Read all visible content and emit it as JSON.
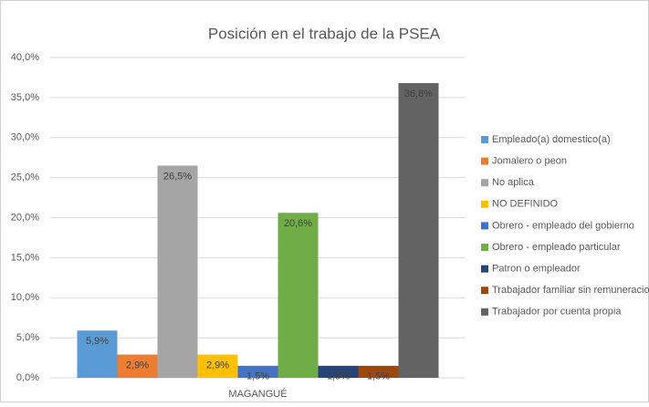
{
  "chart_data": {
    "type": "bar",
    "title": "Posición en el trabajo de la PSEA",
    "categories": [
      "MAGANGUÉ"
    ],
    "series": [
      {
        "name": "Empleado(a) domestico(a)",
        "color": "#5B9BD5",
        "values": [
          5.9
        ],
        "value_labels": [
          "5,9%"
        ]
      },
      {
        "name": "Jomalero o peon",
        "color": "#ED7D31",
        "values": [
          2.9
        ],
        "value_labels": [
          "2,9%"
        ]
      },
      {
        "name": "No aplica",
        "color": "#A5A5A5",
        "values": [
          26.5
        ],
        "value_labels": [
          "26,5%"
        ]
      },
      {
        "name": "NO DEFINIDO",
        "color": "#FFC000",
        "values": [
          2.9
        ],
        "value_labels": [
          "2,9%"
        ]
      },
      {
        "name": "Obrero - empleado del gobierno",
        "color": "#4472C4",
        "values": [
          1.5
        ],
        "value_labels": [
          "1,5%"
        ]
      },
      {
        "name": "Obrero - empleado particular",
        "color": "#70AD47",
        "values": [
          20.6
        ],
        "value_labels": [
          "20,6%"
        ]
      },
      {
        "name": "Patron o empleador",
        "color": "#264478",
        "values": [
          1.5
        ],
        "value_labels": [
          "1,5%"
        ]
      },
      {
        "name": "Trabajador familiar sin remuneracion",
        "color": "#9E480E",
        "values": [
          1.5
        ],
        "value_labels": [
          "1,5%"
        ]
      },
      {
        "name": "Trabajador por cuenta propia",
        "color": "#636363",
        "values": [
          36.8
        ],
        "value_labels": [
          "36,8%"
        ]
      }
    ],
    "ylim": [
      0,
      40
    ],
    "yticks": [
      {
        "value": 0,
        "label": "0,0%"
      },
      {
        "value": 5,
        "label": "5,0%"
      },
      {
        "value": 10,
        "label": "10,0%"
      },
      {
        "value": 15,
        "label": "15,0%"
      },
      {
        "value": 20,
        "label": "20,0%"
      },
      {
        "value": 25,
        "label": "25,0%"
      },
      {
        "value": 30,
        "label": "30,0%"
      },
      {
        "value": 35,
        "label": "35,0%"
      },
      {
        "value": 40,
        "label": "40,0%"
      }
    ],
    "grid": true,
    "legend": "right"
  }
}
